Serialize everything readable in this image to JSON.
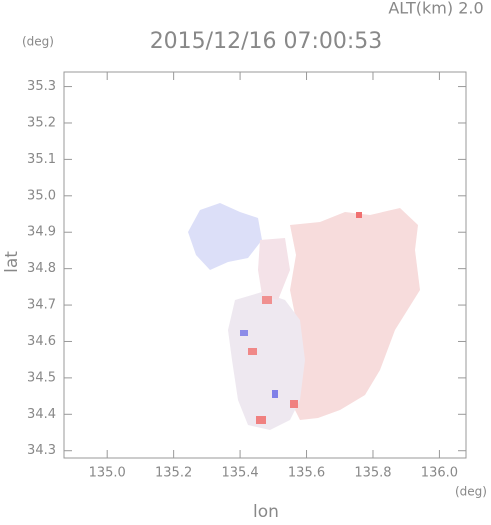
{
  "chart_data": {
    "type": "map",
    "title": "2015/12/16 07:00:53",
    "subtitle": "ALT(km) 2.0",
    "x_label": "lon",
    "y_label": "lat",
    "x_unit": "(deg)",
    "y_unit": "(deg)",
    "xlim": [
      134.87,
      136.08
    ],
    "ylim": [
      34.28,
      35.34
    ],
    "xticks": [
      {
        "value": 135,
        "label": "135.0"
      },
      135.2,
      135.4,
      135.6,
      135.8,
      {
        "value": 136,
        "label": "136.0"
      }
    ],
    "yticks": [
      34.3,
      34.4,
      34.5,
      34.6,
      34.7,
      34.8,
      34.9,
      {
        "value": 35,
        "label": "35.0"
      },
      35.1,
      35.2,
      35.3
    ]
  }
}
